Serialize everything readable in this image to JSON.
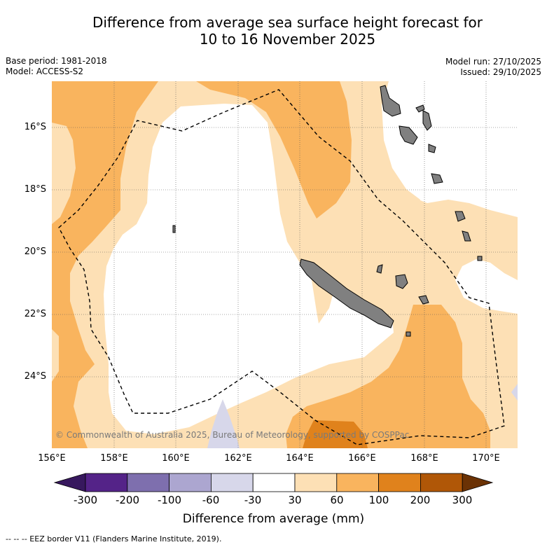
{
  "title_line1": "Difference from average sea surface height forecast for",
  "title_line2": "10 to 16 November 2025",
  "meta_left": {
    "base_period": "Base period: 1981-2018",
    "model": "Model: ACCESS-S2"
  },
  "meta_right": {
    "model_run": "Model run: 27/10/2025",
    "issued": "Issued: 29/10/2025"
  },
  "lat_labels": [
    "16°S",
    "18°S",
    "20°S",
    "22°S",
    "24°S"
  ],
  "lon_labels": [
    "156°E",
    "158°E",
    "160°E",
    "162°E",
    "164°E",
    "166°E",
    "168°E",
    "170°E"
  ],
  "colorbar": {
    "ticks": [
      "-300",
      "-200",
      "-100",
      "-60",
      "-30",
      "30",
      "60",
      "100",
      "200",
      "300"
    ],
    "colors": [
      "#37185e",
      "#542388",
      "#7e6fae",
      "#aca6d0",
      "#d7d7ea",
      "#ffffff",
      "#fde0b5",
      "#f9b45e",
      "#e0821c",
      "#b05707",
      "#6b3205"
    ],
    "title": "Difference from average (mm)"
  },
  "copyright": "© Commonwealth of Australia 2025, Bureau of Meteorology, supported by COSPPac",
  "footnote": "--  --  -- EEZ border V11 (Flanders Marine Institute, 2019).",
  "land_color": "#808080"
}
